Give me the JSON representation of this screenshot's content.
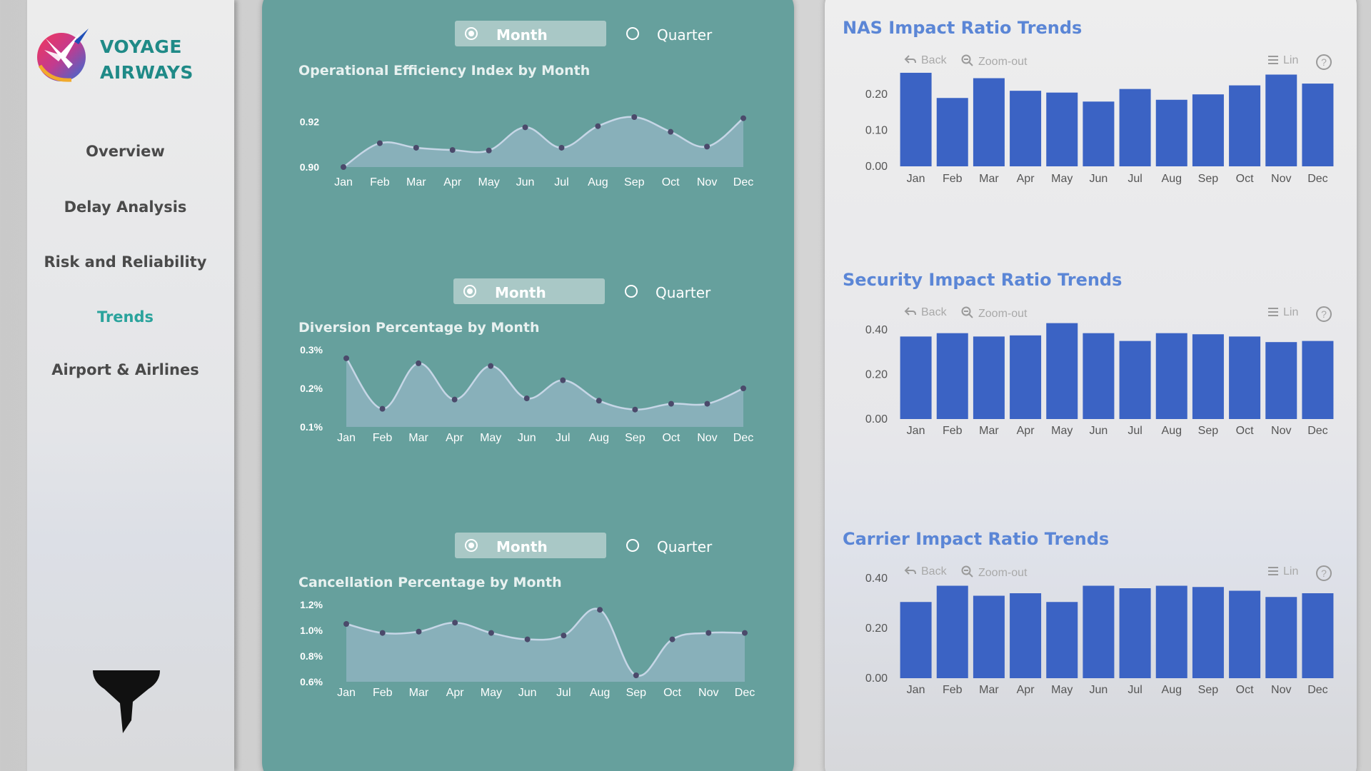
{
  "brand": {
    "line1": "VOYAGE",
    "line2": "AIRWAYS"
  },
  "nav": [
    {
      "label": "Overview",
      "active": false
    },
    {
      "label": "Delay Analysis",
      "active": false
    },
    {
      "label": "Risk and Reliability",
      "active": false
    },
    {
      "label": "Trends",
      "active": true
    },
    {
      "label": "Airport & Airlines",
      "active": false
    }
  ],
  "toggles": {
    "month_label": "Month",
    "quarter_label": "Quarter",
    "selected": "Month"
  },
  "toolbar": {
    "back": "Back",
    "zoom_out": "Zoom-out",
    "lin": "Lin",
    "help": "?"
  },
  "colors": {
    "accent": "#2aa39c",
    "panel": "#66a09d",
    "bar": "#3b63c4",
    "title_blue": "#5b86d6"
  },
  "chart_data": [
    {
      "id": "efficiency",
      "type": "area",
      "title": "Operational Efficiency Index by Month",
      "categories": [
        "Jan",
        "Feb",
        "Mar",
        "Apr",
        "May",
        "Jun",
        "Jul",
        "Aug",
        "Sep",
        "Oct",
        "Nov",
        "Dec"
      ],
      "values": [
        0.9,
        0.9105,
        0.9085,
        0.9075,
        0.9073,
        0.9175,
        0.9085,
        0.918,
        0.922,
        0.9155,
        0.909,
        0.9215
      ],
      "yticks": [
        "0.92",
        "0.90"
      ],
      "ylim": [
        0.9,
        0.922
      ]
    },
    {
      "id": "diversion",
      "type": "area",
      "title": "Diversion Percentage by Month",
      "categories": [
        "Jan",
        "Feb",
        "Mar",
        "Apr",
        "May",
        "Jun",
        "Jul",
        "Aug",
        "Sep",
        "Oct",
        "Nov",
        "Dec"
      ],
      "values": [
        0.278,
        0.147,
        0.265,
        0.171,
        0.258,
        0.174,
        0.221,
        0.168,
        0.145,
        0.16,
        0.16,
        0.2
      ],
      "yticks": [
        "0.3%",
        "0.2%",
        "0.1%"
      ],
      "ylim": [
        0.1,
        0.3
      ]
    },
    {
      "id": "cancellation",
      "type": "area",
      "title": "Cancellation Percentage by Month",
      "categories": [
        "Jan",
        "Feb",
        "Mar",
        "Apr",
        "May",
        "Jun",
        "Jul",
        "Aug",
        "Sep",
        "Oct",
        "Nov",
        "Dec"
      ],
      "values": [
        1.05,
        0.98,
        0.99,
        1.06,
        0.98,
        0.93,
        0.96,
        1.16,
        0.65,
        0.93,
        0.98,
        0.98
      ],
      "yticks": [
        "1.2%",
        "1.0%",
        "0.8%",
        "0.6%"
      ],
      "ylim": [
        0.6,
        1.2
      ]
    },
    {
      "id": "nas",
      "type": "bar",
      "title": "NAS Impact Ratio Trends",
      "categories": [
        "Jan",
        "Feb",
        "Mar",
        "Apr",
        "May",
        "Jun",
        "Jul",
        "Aug",
        "Sep",
        "Oct",
        "Nov",
        "Dec"
      ],
      "values": [
        0.26,
        0.19,
        0.245,
        0.21,
        0.205,
        0.18,
        0.215,
        0.185,
        0.2,
        0.225,
        0.255,
        0.23
      ],
      "yticks": [
        "0.20",
        "0.10",
        "0.00"
      ],
      "ylim": [
        0,
        0.25
      ]
    },
    {
      "id": "security",
      "type": "bar",
      "title": "Security Impact Ratio Trends",
      "categories": [
        "Jan",
        "Feb",
        "Mar",
        "Apr",
        "May",
        "Jun",
        "Jul",
        "Aug",
        "Sep",
        "Oct",
        "Nov",
        "Dec"
      ],
      "values": [
        0.37,
        0.385,
        0.37,
        0.375,
        0.43,
        0.385,
        0.35,
        0.385,
        0.38,
        0.37,
        0.345,
        0.35
      ],
      "yticks": [
        "0.40",
        "0.20",
        "0.00"
      ],
      "ylim": [
        0,
        0.4
      ]
    },
    {
      "id": "carrier",
      "type": "bar",
      "title": "Carrier Impact Ratio Trends",
      "categories": [
        "Jan",
        "Feb",
        "Mar",
        "Apr",
        "May",
        "Jun",
        "Jul",
        "Aug",
        "Sep",
        "Oct",
        "Nov",
        "Dec"
      ],
      "values": [
        0.305,
        0.37,
        0.33,
        0.34,
        0.305,
        0.37,
        0.36,
        0.37,
        0.365,
        0.35,
        0.325,
        0.34
      ],
      "yticks": [
        "0.40",
        "0.20",
        "0.00"
      ],
      "ylim": [
        0,
        0.4
      ]
    }
  ]
}
